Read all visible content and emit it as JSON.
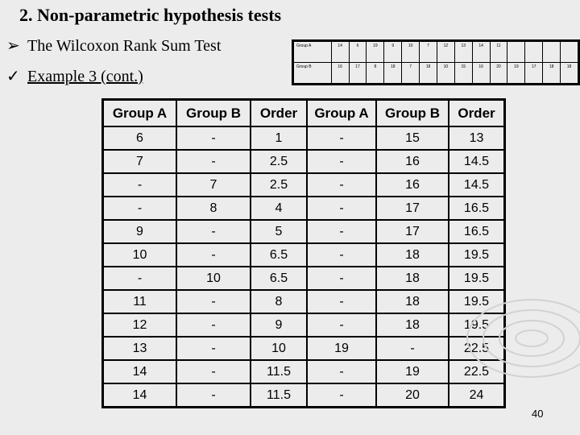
{
  "title": "2. Non-parametric hypothesis tests",
  "bullets": [
    {
      "icon": "arrow-bullet-icon",
      "mark": "Ø",
      "text": "The Wilcoxon Rank Sum Test"
    },
    {
      "icon": "check-bullet-icon",
      "mark": "ü",
      "text": "Example 3 (cont.)"
    }
  ],
  "raw_table": {
    "rows": [
      {
        "label": "Group A",
        "values": [
          "14",
          "6",
          "19",
          "9",
          "10",
          "7",
          "12",
          "13",
          "14",
          "11",
          "",
          "",
          "",
          ""
        ]
      },
      {
        "label": "Group B",
        "values": [
          "16",
          "17",
          "8",
          "18",
          "7",
          "18",
          "10",
          "15",
          "16",
          "20",
          "19",
          "17",
          "18",
          "18"
        ]
      }
    ]
  },
  "rank_table": {
    "headers": [
      "Group A",
      "Group B",
      "Order",
      "Group A",
      "Group B",
      "Order"
    ],
    "rows": [
      [
        "6",
        "-",
        "1",
        "-",
        "15",
        "13"
      ],
      [
        "7",
        "-",
        "2.5",
        "-",
        "16",
        "14.5"
      ],
      [
        "-",
        "7",
        "2.5",
        "-",
        "16",
        "14.5"
      ],
      [
        "-",
        "8",
        "4",
        "-",
        "17",
        "16.5"
      ],
      [
        "9",
        "-",
        "5",
        "-",
        "17",
        "16.5"
      ],
      [
        "10",
        "-",
        "6.5",
        "-",
        "18",
        "19.5"
      ],
      [
        "-",
        "10",
        "6.5",
        "-",
        "18",
        "19.5"
      ],
      [
        "11",
        "-",
        "8",
        "-",
        "18",
        "19.5"
      ],
      [
        "12",
        "-",
        "9",
        "-",
        "18",
        "19.5"
      ],
      [
        "13",
        "-",
        "10",
        "19",
        "-",
        "22.5"
      ],
      [
        "14",
        "-",
        "11.5",
        "-",
        "19",
        "22.5"
      ],
      [
        "14",
        "-",
        "11.5",
        "-",
        "20",
        "24"
      ]
    ]
  },
  "page_number": "40"
}
